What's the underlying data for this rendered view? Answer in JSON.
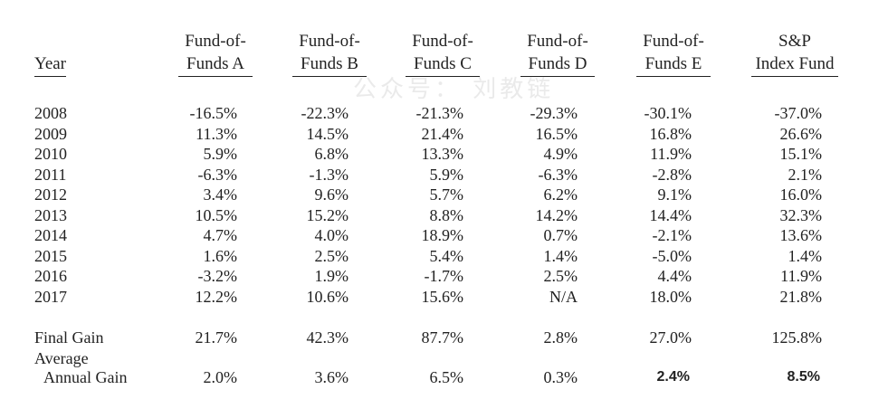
{
  "headers": {
    "year": "Year",
    "fund_a": [
      "Fund-of-",
      "Funds A"
    ],
    "fund_b": [
      "Fund-of-",
      "Funds B"
    ],
    "fund_c": [
      "Fund-of-",
      "Funds C"
    ],
    "fund_d": [
      "Fund-of-",
      "Funds D"
    ],
    "fund_e": [
      "Fund-of-",
      "Funds E"
    ],
    "sp": [
      "S&P",
      "Index Fund"
    ]
  },
  "watermark": "公众号： 刘教链",
  "rows": [
    {
      "year": "2008",
      "a": "-16.5%",
      "b": "-22.3%",
      "c": "-21.3%",
      "d": "-29.3%",
      "e": "-30.1%",
      "sp": "-37.0%"
    },
    {
      "year": "2009",
      "a": "11.3%",
      "b": "14.5%",
      "c": "21.4%",
      "d": "16.5%",
      "e": "16.8%",
      "sp": "26.6%"
    },
    {
      "year": "2010",
      "a": "5.9%",
      "b": "6.8%",
      "c": "13.3%",
      "d": "4.9%",
      "e": "11.9%",
      "sp": "15.1%"
    },
    {
      "year": "2011",
      "a": "-6.3%",
      "b": "-1.3%",
      "c": "5.9%",
      "d": "-6.3%",
      "e": "-2.8%",
      "sp": "2.1%"
    },
    {
      "year": "2012",
      "a": "3.4%",
      "b": "9.6%",
      "c": "5.7%",
      "d": "6.2%",
      "e": "9.1%",
      "sp": "16.0%"
    },
    {
      "year": "2013",
      "a": "10.5%",
      "b": "15.2%",
      "c": "8.8%",
      "d": "14.2%",
      "e": "14.4%",
      "sp": "32.3%"
    },
    {
      "year": "2014",
      "a": "4.7%",
      "b": "4.0%",
      "c": "18.9%",
      "d": "0.7%",
      "e": "-2.1%",
      "sp": "13.6%"
    },
    {
      "year": "2015",
      "a": "1.6%",
      "b": "2.5%",
      "c": "5.4%",
      "d": "1.4%",
      "e": "-5.0%",
      "sp": "1.4%"
    },
    {
      "year": "2016",
      "a": "-3.2%",
      "b": "1.9%",
      "c": "-1.7%",
      "d": "2.5%",
      "e": "4.4%",
      "sp": "11.9%"
    },
    {
      "year": "2017",
      "a": "12.2%",
      "b": "10.6%",
      "c": "15.6%",
      "d": "N/A",
      "e": "18.0%",
      "sp": "21.8%"
    }
  ],
  "final_gain": {
    "label": "Final Gain",
    "a": "21.7%",
    "b": "42.3%",
    "c": "87.7%",
    "d": "2.8%",
    "e": "27.0%",
    "sp": "125.8%"
  },
  "average": {
    "label_line1": "Average",
    "label_line2": "Annual Gain",
    "a": "2.0%",
    "b": "3.6%",
    "c": "6.5%",
    "d": "0.3%",
    "e": "2.4%",
    "sp": "8.5%"
  }
}
